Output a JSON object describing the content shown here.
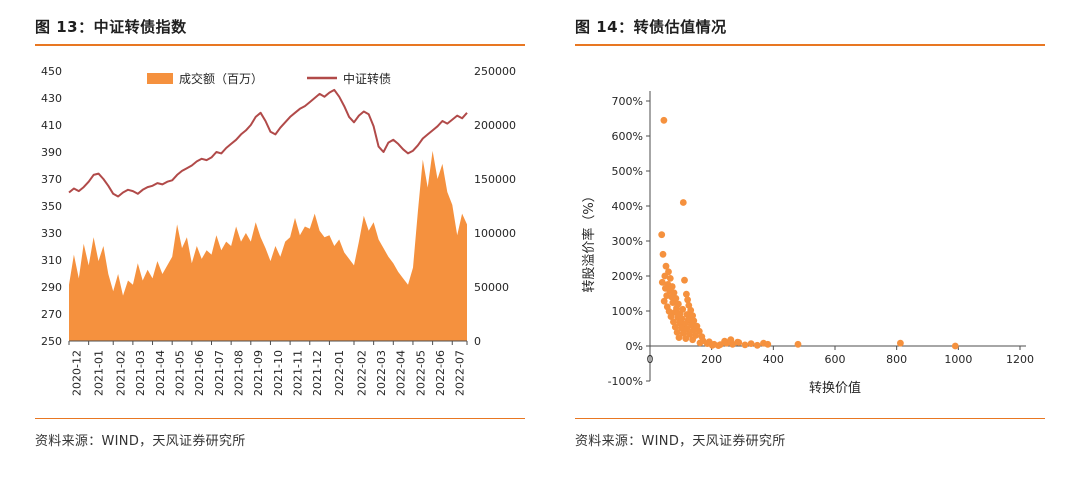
{
  "colors": {
    "orange": "#F5913E",
    "darkred": "#B14A49",
    "rule": "#E87722",
    "axis": "#4d4d4d"
  },
  "left_panel": {
    "title": "图 13：中证转债指数",
    "source": "资料来源：WIND，天风证券研究所"
  },
  "right_panel": {
    "title": "图 14：转债估值情况",
    "source": "资料来源：WIND，天风证券研究所"
  },
  "chart_data": [
    {
      "type": "area",
      "title": "图 13：中证转债指数",
      "legend_position": "top",
      "categories": [
        "2020-12",
        "2021-01",
        "2021-02",
        "2021-03",
        "2021-04",
        "2021-05",
        "2021-06",
        "2021-07",
        "2021-08",
        "2021-09",
        "2021-10",
        "2021-11",
        "2021-12",
        "2022-01",
        "2022-02",
        "2022-03",
        "2022-04",
        "2022-05",
        "2022-06",
        "2022-07"
      ],
      "month_counts": [
        4,
        5,
        4,
        4,
        4,
        4,
        4,
        4,
        4,
        4,
        4,
        4,
        4,
        5,
        4,
        4,
        4,
        4,
        4,
        4
      ],
      "left_axis": {
        "min": 250,
        "max": 450,
        "step": 20
      },
      "right_axis": {
        "min": 0,
        "max": 250000,
        "step": 50000
      },
      "series": [
        {
          "name": "成交额（百万）",
          "type": "area",
          "axis": "right",
          "values": [
            52000,
            80000,
            58000,
            90000,
            70000,
            96000,
            74000,
            88000,
            62000,
            46000,
            62000,
            42000,
            56000,
            52000,
            72000,
            56000,
            66000,
            58000,
            74000,
            62000,
            70000,
            78000,
            108000,
            86000,
            96000,
            72000,
            88000,
            76000,
            84000,
            80000,
            98000,
            84000,
            92000,
            88000,
            106000,
            92000,
            100000,
            92000,
            110000,
            96000,
            86000,
            74000,
            88000,
            78000,
            92000,
            96000,
            114000,
            98000,
            106000,
            104000,
            118000,
            102000,
            96000,
            98000,
            88000,
            94000,
            82000,
            76000,
            70000,
            92000,
            116000,
            102000,
            110000,
            94000,
            86000,
            78000,
            72000,
            64000,
            58000,
            52000,
            68000,
            120000,
            168000,
            142000,
            176000,
            150000,
            164000,
            138000,
            126000,
            98000,
            118000,
            108000
          ]
        },
        {
          "name": "中证转债",
          "type": "line",
          "axis": "left",
          "values": [
            360,
            363,
            361,
            364,
            368,
            373,
            374,
            370,
            365,
            359,
            357,
            360,
            362,
            361,
            359,
            362,
            364,
            365,
            367,
            366,
            368,
            369,
            373,
            376,
            378,
            380,
            383,
            385,
            384,
            386,
            390,
            389,
            393,
            396,
            399,
            403,
            406,
            410,
            416,
            419,
            413,
            405,
            403,
            408,
            412,
            416,
            419,
            422,
            424,
            427,
            430,
            433,
            431,
            434,
            436,
            431,
            424,
            416,
            412,
            417,
            420,
            418,
            409,
            394,
            390,
            397,
            399,
            396,
            392,
            389,
            391,
            395,
            400,
            403,
            406,
            409,
            413,
            411,
            414,
            417,
            415,
            419
          ]
        }
      ]
    },
    {
      "type": "scatter",
      "title": "图 14：转债估值情况",
      "xlabel": "转换价值",
      "ylabel": "转股溢价率（%）",
      "x_axis": {
        "min": 0,
        "max": 1200,
        "step": 200
      },
      "y_axis": {
        "min": -100,
        "max": 700,
        "step": 100,
        "format": "percent"
      },
      "points": [
        [
          45,
          645
        ],
        [
          108,
          410
        ],
        [
          38,
          318
        ],
        [
          42,
          262
        ],
        [
          52,
          228
        ],
        [
          60,
          212
        ],
        [
          48,
          200
        ],
        [
          66,
          193
        ],
        [
          112,
          188
        ],
        [
          40,
          182
        ],
        [
          58,
          176
        ],
        [
          72,
          170
        ],
        [
          50,
          165
        ],
        [
          64,
          158
        ],
        [
          78,
          152
        ],
        [
          118,
          148
        ],
        [
          54,
          144
        ],
        [
          70,
          140
        ],
        [
          84,
          136
        ],
        [
          122,
          132
        ],
        [
          46,
          128
        ],
        [
          74,
          124
        ],
        [
          92,
          120
        ],
        [
          126,
          116
        ],
        [
          56,
          112
        ],
        [
          86,
          108
        ],
        [
          106,
          105
        ],
        [
          132,
          102
        ],
        [
          62,
          99
        ],
        [
          80,
          96
        ],
        [
          98,
          93
        ],
        [
          120,
          90
        ],
        [
          138,
          87
        ],
        [
          68,
          84
        ],
        [
          90,
          81
        ],
        [
          103,
          78
        ],
        [
          124,
          75
        ],
        [
          142,
          72
        ],
        [
          76,
          69
        ],
        [
          96,
          66
        ],
        [
          114,
          63
        ],
        [
          134,
          60
        ],
        [
          152,
          57
        ],
        [
          82,
          54
        ],
        [
          102,
          51
        ],
        [
          120,
          48
        ],
        [
          140,
          45
        ],
        [
          160,
          42
        ],
        [
          88,
          39
        ],
        [
          108,
          36
        ],
        [
          128,
          33
        ],
        [
          148,
          30
        ],
        [
          168,
          27
        ],
        [
          94,
          24
        ],
        [
          116,
          21
        ],
        [
          138,
          18
        ],
        [
          172,
          15
        ],
        [
          192,
          12
        ],
        [
          162,
          9
        ],
        [
          186,
          7
        ],
        [
          208,
          5
        ],
        [
          228,
          4
        ],
        [
          248,
          8
        ],
        [
          268,
          5
        ],
        [
          288,
          10
        ],
        [
          308,
          3
        ],
        [
          328,
          7
        ],
        [
          348,
          2
        ],
        [
          368,
          8
        ],
        [
          242,
          14
        ],
        [
          262,
          18
        ],
        [
          284,
          11
        ],
        [
          202,
          2
        ],
        [
          222,
          1
        ],
        [
          382,
          5
        ],
        [
          480,
          5
        ],
        [
          812,
          8
        ],
        [
          990,
          0
        ]
      ]
    }
  ]
}
